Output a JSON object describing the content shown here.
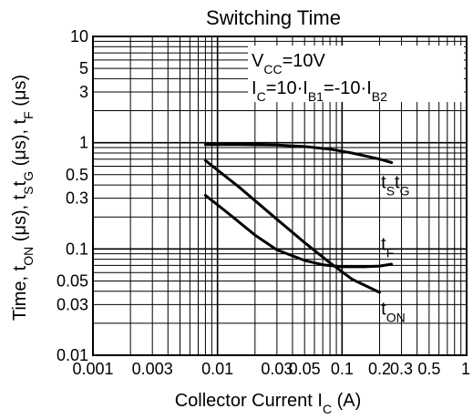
{
  "chart_data": {
    "type": "line",
    "title": "Switching Time",
    "xlabel": {
      "main": "Collector Current I",
      "sub": "C",
      "unit": " (A)"
    },
    "ylabel": {
      "parts": [
        {
          "text": "Time, t",
          "sub": false
        },
        {
          "text": "ON",
          "sub": true
        },
        {
          "text": " (μs), t",
          "sub": false
        },
        {
          "text": "S",
          "sub": true
        },
        {
          "text": "t",
          "sub": false
        },
        {
          "text": "G",
          "sub": true
        },
        {
          "text": " (μs), t",
          "sub": false
        },
        {
          "text": "F",
          "sub": true
        },
        {
          "text": " (μs)",
          "sub": false
        }
      ]
    },
    "x_scale": "log",
    "y_scale": "log",
    "xlim": [
      0.001,
      1
    ],
    "ylim": [
      0.01,
      10
    ],
    "grid": true,
    "x_ticks": [
      {
        "v": 0.001,
        "label": "0.001"
      },
      {
        "v": 0.003,
        "label": "0.003"
      },
      {
        "v": 0.01,
        "label": "0.01"
      },
      {
        "v": 0.03,
        "label": "0.03"
      },
      {
        "v": 0.05,
        "label": "0.05"
      },
      {
        "v": 0.1,
        "label": "0.1"
      },
      {
        "v": 0.2,
        "label": "0.2"
      },
      {
        "v": 0.3,
        "label": "0.3"
      },
      {
        "v": 0.5,
        "label": "0.5"
      },
      {
        "v": 1,
        "label": "1"
      }
    ],
    "y_ticks": [
      {
        "v": 10,
        "label": "10"
      },
      {
        "v": 5,
        "label": "5"
      },
      {
        "v": 3,
        "label": "3"
      },
      {
        "v": 1,
        "label": "1"
      },
      {
        "v": 0.5,
        "label": "0.5"
      },
      {
        "v": 0.3,
        "label": "0.3"
      },
      {
        "v": 0.1,
        "label": "0.1"
      },
      {
        "v": 0.05,
        "label": "0.05"
      },
      {
        "v": 0.03,
        "label": "0.03"
      },
      {
        "v": 0.01,
        "label": "0.01"
      }
    ],
    "conditions": [
      [
        {
          "text": "V",
          "sub": false
        },
        {
          "text": "CC",
          "sub": true
        },
        {
          "text": "=10V",
          "sub": false
        }
      ],
      [
        {
          "text": "I",
          "sub": false
        },
        {
          "text": "C",
          "sub": true
        },
        {
          "text": "=10·I",
          "sub": false
        },
        {
          "text": "B1",
          "sub": true
        },
        {
          "text": "=-10·I",
          "sub": false
        },
        {
          "text": "B2",
          "sub": true
        }
      ]
    ],
    "series": [
      {
        "name": "tstg",
        "label_parts": [
          {
            "text": "t",
            "sub": false
          },
          {
            "text": "S",
            "sub": true
          },
          {
            "text": "t",
            "sub": false
          },
          {
            "text": "G",
            "sub": true
          }
        ],
        "label_at": {
          "x": 0.22,
          "y": 0.42
        },
        "x": [
          0.008,
          0.015,
          0.03,
          0.05,
          0.08,
          0.12,
          0.2,
          0.25
        ],
        "y": [
          0.96,
          0.96,
          0.95,
          0.92,
          0.87,
          0.8,
          0.7,
          0.65
        ]
      },
      {
        "name": "tF",
        "label_parts": [
          {
            "text": "t",
            "sub": false
          },
          {
            "text": "F",
            "sub": true
          }
        ],
        "label_at": {
          "x": 0.22,
          "y": 0.11
        },
        "x": [
          0.008,
          0.012,
          0.02,
          0.03,
          0.05,
          0.07,
          0.1,
          0.15,
          0.2,
          0.25
        ],
        "y": [
          0.32,
          0.22,
          0.135,
          0.098,
          0.078,
          0.071,
          0.068,
          0.068,
          0.069,
          0.072
        ]
      },
      {
        "name": "tON",
        "label_parts": [
          {
            "text": "t",
            "sub": false
          },
          {
            "text": "ON",
            "sub": true
          }
        ],
        "label_at": {
          "x": 0.22,
          "y": 0.027
        },
        "x": [
          0.008,
          0.015,
          0.03,
          0.05,
          0.08,
          0.12,
          0.2
        ],
        "y": [
          0.68,
          0.38,
          0.19,
          0.115,
          0.074,
          0.052,
          0.039
        ]
      }
    ]
  }
}
